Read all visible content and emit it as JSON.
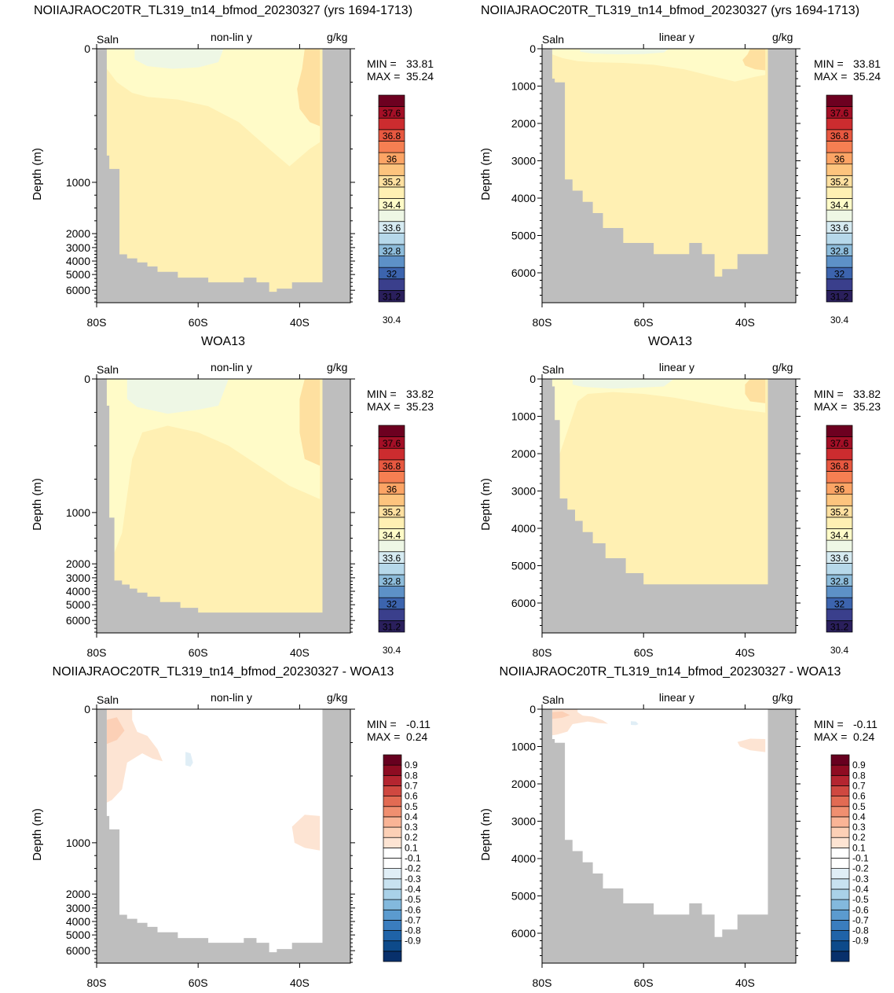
{
  "colors": {
    "land": "#bebebe",
    "salinity_palette": [
      "#2a1f5c",
      "#3a3f8c",
      "#3c64ae",
      "#5d91c7",
      "#8dbcdb",
      "#b6d8ea",
      "#d6ebf2",
      "#eef7e5",
      "#fffbc8",
      "#fff0b3",
      "#fee0a0",
      "#fdc47e",
      "#fca465",
      "#f67f52",
      "#e75840",
      "#cc2c2f",
      "#a30f26",
      "#6d0020"
    ],
    "diff_palette": [
      "#08306b",
      "#0d4a8a",
      "#1f63a8",
      "#3a7dbe",
      "#5b9bcf",
      "#83b9dd",
      "#a9d1e8",
      "#c8e2f0",
      "#e0eef6",
      "#ffffff",
      "#ffffff",
      "#fde4d3",
      "#fcd0b6",
      "#f9b496",
      "#f08f70",
      "#e26b53",
      "#cf4840",
      "#b42530",
      "#8e0c22",
      "#67001f"
    ]
  },
  "panels": [
    {
      "title": "NOIIAJRAOC20TR_TL319_tn14_bfmod_20230327 (yrs 1694-1713)",
      "left_label": "Saln",
      "center_label": "non-lin y",
      "right_label": "g/kg",
      "min_label": "MIN =",
      "min_value": "33.81",
      "max_label": "MAX =",
      "max_value": "35.24",
      "ylabel": "Depth (m)",
      "ytick_labels": [
        "0",
        "1000",
        "2000",
        "3000",
        "4000",
        "5000",
        "6000"
      ],
      "xtick_labels": [
        "80S",
        "60S",
        "40S"
      ],
      "colorbar_labels": [
        "37.6",
        "36.8",
        "36",
        "35.2",
        "34.4",
        "33.6",
        "32.8",
        "32",
        "31.2",
        "30.4"
      ]
    },
    {
      "title": "NOIIAJRAOC20TR_TL319_tn14_bfmod_20230327 (yrs 1694-1713)",
      "left_label": "Saln",
      "center_label": "linear y",
      "right_label": "g/kg",
      "min_label": "MIN =",
      "min_value": "33.81",
      "max_label": "MAX =",
      "max_value": "35.24",
      "ylabel": "Depth (m)",
      "ytick_labels": [
        "0",
        "1000",
        "2000",
        "3000",
        "4000",
        "5000",
        "6000"
      ],
      "xtick_labels": [
        "80S",
        "60S",
        "40S"
      ],
      "colorbar_labels": [
        "37.6",
        "36.8",
        "36",
        "35.2",
        "34.4",
        "33.6",
        "32.8",
        "32",
        "31.2",
        "30.4"
      ]
    },
    {
      "title": "WOA13",
      "left_label": "Saln",
      "center_label": "non-lin y",
      "right_label": "g/kg",
      "min_label": "MIN =",
      "min_value": "33.82",
      "max_label": "MAX =",
      "max_value": "35.23",
      "ylabel": "Depth (m)",
      "ytick_labels": [
        "0",
        "1000",
        "2000",
        "3000",
        "4000",
        "5000",
        "6000"
      ],
      "xtick_labels": [
        "80S",
        "60S",
        "40S"
      ],
      "colorbar_labels": [
        "37.6",
        "36.8",
        "36",
        "35.2",
        "34.4",
        "33.6",
        "32.8",
        "32",
        "31.2",
        "30.4"
      ]
    },
    {
      "title": "WOA13",
      "left_label": "Saln",
      "center_label": "linear y",
      "right_label": "g/kg",
      "min_label": "MIN =",
      "min_value": "33.82",
      "max_label": "MAX =",
      "max_value": "35.23",
      "ylabel": "Depth (m)",
      "ytick_labels": [
        "0",
        "1000",
        "2000",
        "3000",
        "4000",
        "5000",
        "6000"
      ],
      "xtick_labels": [
        "80S",
        "60S",
        "40S"
      ],
      "colorbar_labels": [
        "37.6",
        "36.8",
        "36",
        "35.2",
        "34.4",
        "33.6",
        "32.8",
        "32",
        "31.2",
        "30.4"
      ]
    },
    {
      "title": "NOIIAJRAOC20TR_TL319_tn14_bfmod_20230327 - WOA13",
      "left_label": "Saln",
      "center_label": "non-lin y",
      "right_label": "g/kg",
      "min_label": "MIN =",
      "min_value": "-0.11",
      "max_label": "MAX =",
      "max_value": "0.24",
      "ylabel": "Depth (m)",
      "ytick_labels": [
        "0",
        "1000",
        "2000",
        "3000",
        "4000",
        "5000",
        "6000"
      ],
      "xtick_labels": [
        "80S",
        "60S",
        "40S"
      ],
      "colorbar_labels": [
        "0.9",
        "0.8",
        "0.7",
        "0.6",
        "0.5",
        "0.4",
        "0.3",
        "0.2",
        "0.1",
        "-0.1",
        "-0.2",
        "-0.3",
        "-0.4",
        "-0.5",
        "-0.6",
        "-0.7",
        "-0.8",
        "-0.9"
      ]
    },
    {
      "title": "NOIIAJRAOC20TR_TL319_tn14_bfmod_20230327 - WOA13",
      "left_label": "Saln",
      "center_label": "linear y",
      "right_label": "g/kg",
      "min_label": "MIN =",
      "min_value": "-0.11",
      "max_label": "MAX =",
      "max_value": "0.24",
      "ylabel": "Depth (m)",
      "ytick_labels": [
        "0",
        "1000",
        "2000",
        "3000",
        "4000",
        "5000",
        "6000"
      ],
      "xtick_labels": [
        "80S",
        "60S",
        "40S"
      ],
      "colorbar_labels": [
        "0.9",
        "0.8",
        "0.7",
        "0.6",
        "0.5",
        "0.4",
        "0.3",
        "0.2",
        "0.1",
        "-0.1",
        "-0.2",
        "-0.3",
        "-0.4",
        "-0.5",
        "-0.6",
        "-0.7",
        "-0.8",
        "-0.9"
      ]
    }
  ],
  "chart_data": [
    {
      "type": "heatmap",
      "panel": "model salinity, non-linear depth axis",
      "variable": "Saln",
      "units": "g/kg",
      "x_range": [
        "80S",
        "30S"
      ],
      "xticks": [
        "80S",
        "60S",
        "40S"
      ],
      "yticks": [
        0,
        1000,
        2000,
        3000,
        4000,
        5000,
        6000
      ],
      "y_scale": "non-linear",
      "y_inverted": true,
      "min": 33.81,
      "max": 35.24,
      "colorbar_levels": [
        30.4,
        31.2,
        32,
        32.8,
        33.6,
        34.4,
        35.2,
        36,
        36.8,
        37.6
      ]
    },
    {
      "type": "heatmap",
      "panel": "model salinity, linear depth axis",
      "variable": "Saln",
      "units": "g/kg",
      "x_range": [
        "80S",
        "30S"
      ],
      "xticks": [
        "80S",
        "60S",
        "40S"
      ],
      "yticks": [
        0,
        1000,
        2000,
        3000,
        4000,
        5000,
        6000
      ],
      "y_scale": "linear",
      "y_inverted": true,
      "min": 33.81,
      "max": 35.24,
      "colorbar_levels": [
        30.4,
        31.2,
        32,
        32.8,
        33.6,
        34.4,
        35.2,
        36,
        36.8,
        37.6
      ]
    },
    {
      "type": "heatmap",
      "panel": "WOA13 salinity, non-linear depth axis",
      "variable": "Saln",
      "units": "g/kg",
      "x_range": [
        "80S",
        "30S"
      ],
      "xticks": [
        "80S",
        "60S",
        "40S"
      ],
      "yticks": [
        0,
        1000,
        2000,
        3000,
        4000,
        5000,
        6000
      ],
      "y_scale": "non-linear",
      "y_inverted": true,
      "min": 33.82,
      "max": 35.23,
      "colorbar_levels": [
        30.4,
        31.2,
        32,
        32.8,
        33.6,
        34.4,
        35.2,
        36,
        36.8,
        37.6
      ]
    },
    {
      "type": "heatmap",
      "panel": "WOA13 salinity, linear depth axis",
      "variable": "Saln",
      "units": "g/kg",
      "x_range": [
        "80S",
        "30S"
      ],
      "xticks": [
        "80S",
        "60S",
        "40S"
      ],
      "yticks": [
        0,
        1000,
        2000,
        3000,
        4000,
        5000,
        6000
      ],
      "y_scale": "linear",
      "y_inverted": true,
      "min": 33.82,
      "max": 35.23,
      "colorbar_levels": [
        30.4,
        31.2,
        32,
        32.8,
        33.6,
        34.4,
        35.2,
        36,
        36.8,
        37.6
      ]
    },
    {
      "type": "heatmap",
      "panel": "model minus WOA13, non-linear depth axis",
      "variable": "Saln",
      "units": "g/kg",
      "x_range": [
        "80S",
        "30S"
      ],
      "xticks": [
        "80S",
        "60S",
        "40S"
      ],
      "yticks": [
        0,
        1000,
        2000,
        3000,
        4000,
        5000,
        6000
      ],
      "y_scale": "non-linear",
      "y_inverted": true,
      "min": -0.11,
      "max": 0.24,
      "colorbar_levels": [
        -0.9,
        -0.8,
        -0.7,
        -0.6,
        -0.5,
        -0.4,
        -0.3,
        -0.2,
        -0.1,
        0.1,
        0.2,
        0.3,
        0.4,
        0.5,
        0.6,
        0.7,
        0.8,
        0.9
      ]
    },
    {
      "type": "heatmap",
      "panel": "model minus WOA13, linear depth axis",
      "variable": "Saln",
      "units": "g/kg",
      "x_range": [
        "80S",
        "30S"
      ],
      "xticks": [
        "80S",
        "60S",
        "40S"
      ],
      "yticks": [
        0,
        1000,
        2000,
        3000,
        4000,
        5000,
        6000
      ],
      "y_scale": "linear",
      "y_inverted": true,
      "min": -0.11,
      "max": 0.24,
      "colorbar_levels": [
        -0.9,
        -0.8,
        -0.7,
        -0.6,
        -0.5,
        -0.4,
        -0.3,
        -0.2,
        -0.1,
        0.1,
        0.2,
        0.3,
        0.4,
        0.5,
        0.6,
        0.7,
        0.8,
        0.9
      ]
    }
  ]
}
